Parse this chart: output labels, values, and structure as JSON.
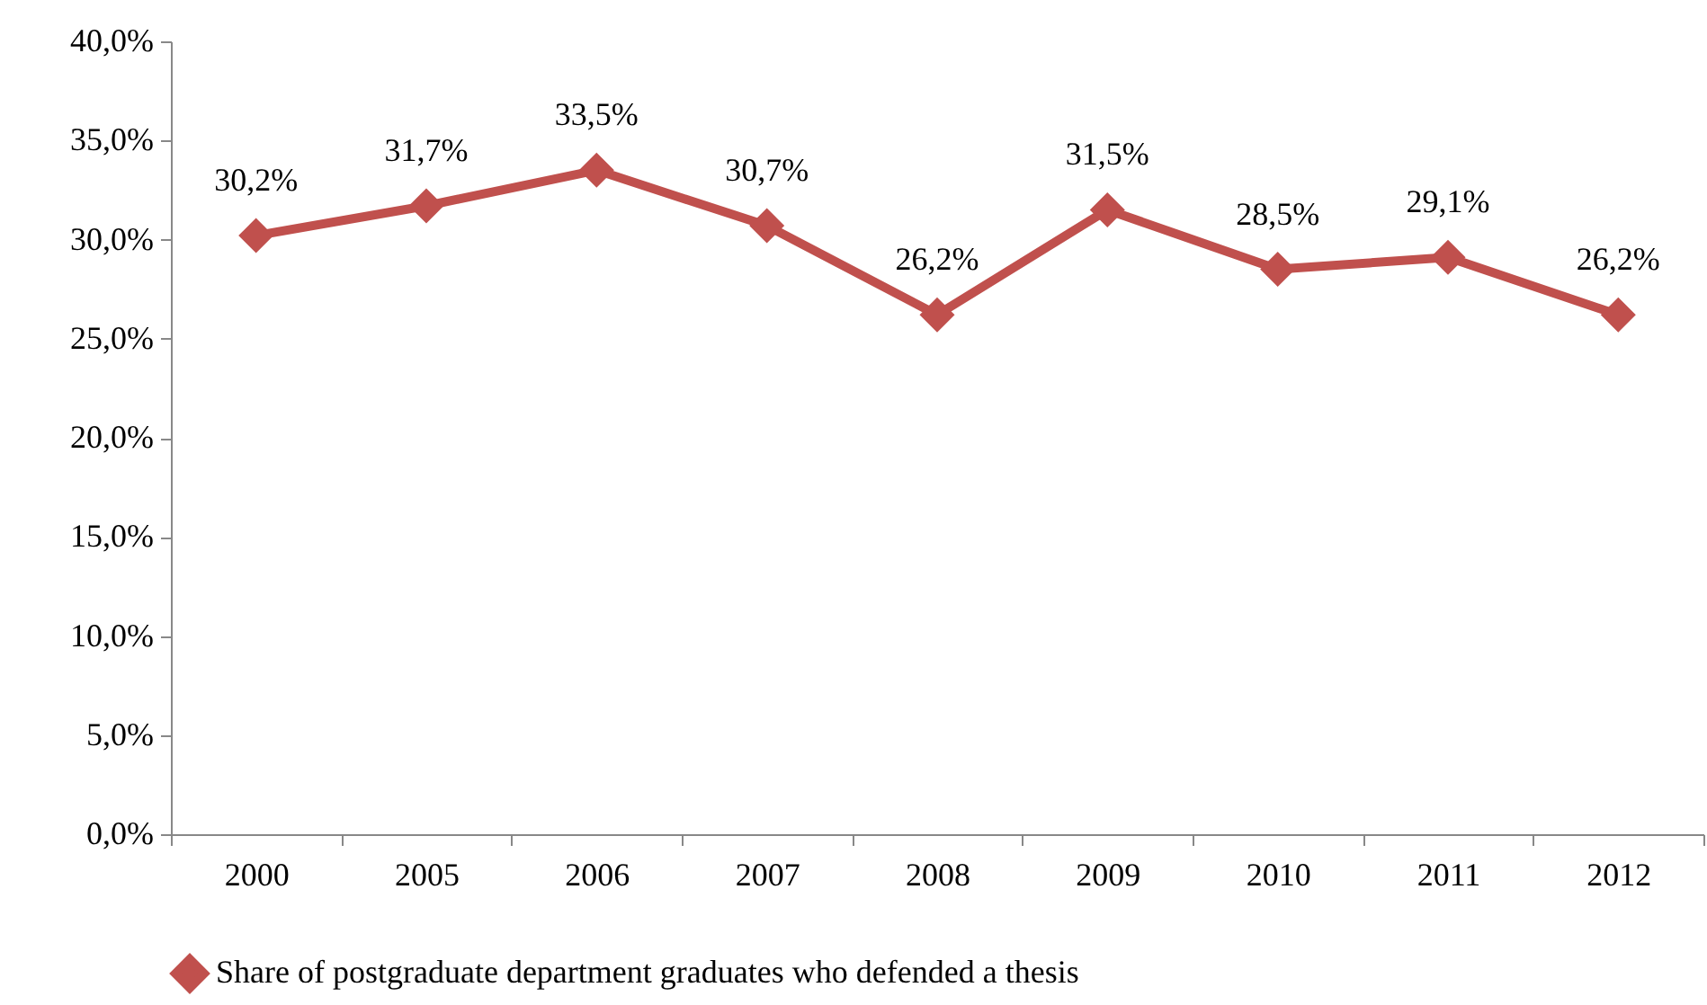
{
  "chart_data": {
    "type": "line",
    "categories": [
      "2000",
      "2005",
      "2006",
      "2007",
      "2008",
      "2009",
      "2010",
      "2011",
      "2012"
    ],
    "series": [
      {
        "name": "Share of postgraduate department graduates who defended a thesis",
        "color": "#c0504d",
        "values": [
          30.2,
          31.7,
          33.5,
          30.7,
          26.2,
          31.5,
          28.5,
          29.1,
          26.2
        ],
        "value_labels": [
          "30,2%",
          "31,7%",
          "33,5%",
          "30,7%",
          "26,2%",
          "31,5%",
          "28,5%",
          "29,1%",
          "26,2%"
        ]
      }
    ],
    "ylim": [
      0,
      40
    ],
    "yticks": [
      {
        "value": 0,
        "label": "0,0%"
      },
      {
        "value": 5,
        "label": "5,0%"
      },
      {
        "value": 10,
        "label": "10,0%"
      },
      {
        "value": 15,
        "label": "15,0%"
      },
      {
        "value": 20,
        "label": "20,0%"
      },
      {
        "value": 25,
        "label": "25,0%"
      },
      {
        "value": 30,
        "label": "30,0%"
      },
      {
        "value": 35,
        "label": "35,0%"
      },
      {
        "value": 40,
        "label": "40,0%"
      }
    ],
    "grid": false,
    "legend": "bottom",
    "marker": "diamond",
    "line_style": "solid"
  }
}
